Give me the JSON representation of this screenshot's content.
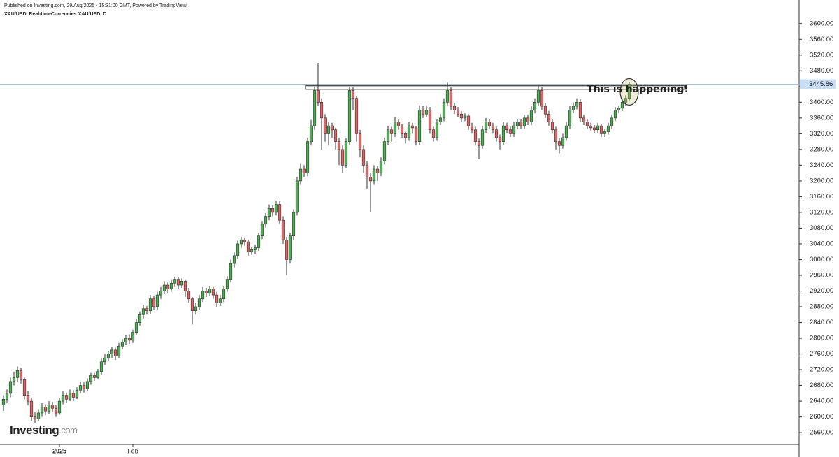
{
  "chart_data": {
    "type": "candlestick",
    "published": "Published on Investing.com, 29/Aug/2025 - 15:31:00 GMT, Powered by TradingView.",
    "title": "XAU/USD, Real-timeCurrencies:XAU/USD, D",
    "annotation": "This is happening!",
    "logo": {
      "name": "Investing",
      "suffix": ".com"
    },
    "up_color": "#4caf50",
    "down_color": "#e06666",
    "line_color": "#9ec3ea",
    "resistance_zone": [
      3433,
      3442
    ],
    "ylim": [
      2530,
      3660
    ],
    "yticks": [
      {
        "value": 2560,
        "label": "2560.00"
      },
      {
        "value": 2600,
        "label": "2600.00"
      },
      {
        "value": 2640,
        "label": "2640.00"
      },
      {
        "value": 2680,
        "label": "2680.00"
      },
      {
        "value": 2720,
        "label": "2720.00"
      },
      {
        "value": 2760,
        "label": "2760.00"
      },
      {
        "value": 2800,
        "label": "2800.00"
      },
      {
        "value": 2840,
        "label": "2840.00"
      },
      {
        "value": 2880,
        "label": "2880.00"
      },
      {
        "value": 2920,
        "label": "2920.00"
      },
      {
        "value": 2960,
        "label": "2960.00"
      },
      {
        "value": 3000,
        "label": "3000.00"
      },
      {
        "value": 3040,
        "label": "3040.00"
      },
      {
        "value": 3080,
        "label": "3080.00"
      },
      {
        "value": 3120,
        "label": "3120.00"
      },
      {
        "value": 3160,
        "label": "3160.00"
      },
      {
        "value": 3200,
        "label": "3200.00"
      },
      {
        "value": 3240,
        "label": "3240.00"
      },
      {
        "value": 3280,
        "label": "3280.00"
      },
      {
        "value": 3320,
        "label": "3320.00"
      },
      {
        "value": 3360,
        "label": "3360.00"
      },
      {
        "value": 3400,
        "label": "3400.00"
      },
      {
        "value": 3440,
        "label": "3440.00"
      },
      {
        "value": 3480,
        "label": "3480.00"
      },
      {
        "value": 3520,
        "label": "3520.00"
      },
      {
        "value": 3560,
        "label": "3560.00"
      },
      {
        "value": 3600,
        "label": "3600.00"
      }
    ],
    "grid": false,
    "categories": [
      null,
      null,
      null,
      null,
      null,
      null,
      null,
      null,
      null,
      null,
      null,
      null,
      null,
      null,
      null,
      null,
      "2025",
      null,
      null,
      null,
      null,
      null,
      null,
      null,
      null,
      null,
      null,
      null,
      null,
      null,
      null,
      null,
      null,
      null,
      null,
      null,
      null,
      "Feb",
      null,
      null,
      null,
      null,
      null,
      null,
      null,
      null,
      null,
      null,
      null,
      null,
      null,
      null,
      null,
      null,
      null,
      null,
      null,
      null,
      null,
      null,
      null,
      null,
      null,
      null,
      null,
      null,
      null,
      null,
      null,
      null,
      null,
      null,
      null,
      null,
      null,
      null,
      null,
      null,
      null,
      null,
      null,
      null,
      null,
      null,
      null,
      null,
      null,
      null,
      null,
      null,
      null,
      null,
      null,
      null,
      null,
      null,
      null,
      null,
      null,
      null,
      null,
      null,
      null,
      null,
      null,
      null,
      null,
      null,
      null,
      null,
      null,
      null,
      null,
      null,
      null,
      null,
      null,
      null,
      null,
      null,
      null,
      null,
      null,
      null,
      null,
      null,
      null,
      null,
      null,
      null,
      null,
      null,
      null,
      null,
      null,
      null,
      null,
      null,
      null,
      null,
      null,
      null,
      null,
      null,
      null,
      null,
      null,
      null,
      null,
      null,
      null,
      null,
      null,
      null,
      null,
      null,
      null,
      null,
      null,
      null,
      null,
      null,
      null,
      null,
      null,
      null,
      null,
      null,
      null,
      null,
      null,
      null,
      null,
      null,
      null,
      null,
      null,
      null,
      null,
      null
    ],
    "ohlc": [
      [
        2630,
        2655,
        2615,
        2645
      ],
      [
        2645,
        2670,
        2635,
        2660
      ],
      [
        2660,
        2700,
        2650,
        2690
      ],
      [
        2690,
        2715,
        2680,
        2700
      ],
      [
        2700,
        2728,
        2690,
        2718
      ],
      [
        2718,
        2725,
        2685,
        2695
      ],
      [
        2695,
        2700,
        2645,
        2655
      ],
      [
        2655,
        2665,
        2630,
        2640
      ],
      [
        2640,
        2648,
        2590,
        2600
      ],
      [
        2600,
        2612,
        2585,
        2595
      ],
      [
        2595,
        2618,
        2590,
        2610
      ],
      [
        2610,
        2635,
        2600,
        2625
      ],
      [
        2625,
        2632,
        2605,
        2615
      ],
      [
        2615,
        2640,
        2608,
        2630
      ],
      [
        2630,
        2638,
        2612,
        2622
      ],
      [
        2622,
        2630,
        2600,
        2610
      ],
      [
        2610,
        2648,
        2605,
        2640
      ],
      [
        2640,
        2665,
        2632,
        2655
      ],
      [
        2655,
        2662,
        2635,
        2645
      ],
      [
        2645,
        2670,
        2640,
        2660
      ],
      [
        2660,
        2668,
        2640,
        2650
      ],
      [
        2650,
        2675,
        2645,
        2668
      ],
      [
        2668,
        2690,
        2660,
        2680
      ],
      [
        2680,
        2688,
        2662,
        2672
      ],
      [
        2672,
        2698,
        2665,
        2690
      ],
      [
        2690,
        2712,
        2682,
        2705
      ],
      [
        2705,
        2712,
        2692,
        2700
      ],
      [
        2700,
        2722,
        2695,
        2715
      ],
      [
        2715,
        2748,
        2708,
        2740
      ],
      [
        2740,
        2760,
        2732,
        2750
      ],
      [
        2750,
        2768,
        2742,
        2760
      ],
      [
        2760,
        2778,
        2750,
        2770
      ],
      [
        2770,
        2776,
        2745,
        2755
      ],
      [
        2755,
        2788,
        2750,
        2780
      ],
      [
        2780,
        2798,
        2772,
        2790
      ],
      [
        2790,
        2808,
        2782,
        2800
      ],
      [
        2800,
        2810,
        2785,
        2795
      ],
      [
        2795,
        2822,
        2788,
        2815
      ],
      [
        2815,
        2848,
        2808,
        2840
      ],
      [
        2840,
        2868,
        2832,
        2860
      ],
      [
        2860,
        2885,
        2850,
        2875
      ],
      [
        2875,
        2882,
        2860,
        2870
      ],
      [
        2870,
        2910,
        2862,
        2900
      ],
      [
        2900,
        2908,
        2872,
        2880
      ],
      [
        2880,
        2918,
        2872,
        2910
      ],
      [
        2910,
        2930,
        2900,
        2920
      ],
      [
        2920,
        2945,
        2912,
        2935
      ],
      [
        2935,
        2942,
        2915,
        2925
      ],
      [
        2925,
        2950,
        2918,
        2940
      ],
      [
        2940,
        2956,
        2930,
        2950
      ],
      [
        2950,
        2955,
        2925,
        2935
      ],
      [
        2935,
        2952,
        2928,
        2945
      ],
      [
        2945,
        2950,
        2905,
        2920
      ],
      [
        2920,
        2928,
        2890,
        2900
      ],
      [
        2900,
        2905,
        2835,
        2870
      ],
      [
        2870,
        2890,
        2860,
        2880
      ],
      [
        2880,
        2910,
        2872,
        2900
      ],
      [
        2900,
        2930,
        2892,
        2920
      ],
      [
        2920,
        2928,
        2905,
        2915
      ],
      [
        2915,
        2932,
        2908,
        2925
      ],
      [
        2925,
        2930,
        2900,
        2910
      ],
      [
        2910,
        2918,
        2880,
        2890
      ],
      [
        2890,
        2910,
        2882,
        2900
      ],
      [
        2900,
        2932,
        2892,
        2925
      ],
      [
        2925,
        2958,
        2918,
        2950
      ],
      [
        2950,
        3000,
        2942,
        2990
      ],
      [
        2990,
        3018,
        2980,
        3010
      ],
      [
        3010,
        3048,
        3002,
        3040
      ],
      [
        3040,
        3058,
        3030,
        3050
      ],
      [
        3050,
        3055,
        3035,
        3045
      ],
      [
        3045,
        3050,
        3010,
        3020
      ],
      [
        3020,
        3032,
        3012,
        3025
      ],
      [
        3025,
        3038,
        3015,
        3030
      ],
      [
        3030,
        3068,
        3022,
        3060
      ],
      [
        3060,
        3098,
        3052,
        3090
      ],
      [
        3090,
        3118,
        3082,
        3110
      ],
      [
        3110,
        3140,
        3100,
        3130
      ],
      [
        3130,
        3138,
        3110,
        3120
      ],
      [
        3120,
        3150,
        3112,
        3140
      ],
      [
        3140,
        3148,
        3090,
        3100
      ],
      [
        3100,
        3110,
        3040,
        3050
      ],
      [
        3050,
        3058,
        2960,
        3000
      ],
      [
        3000,
        3068,
        2990,
        3060
      ],
      [
        3060,
        3128,
        3050,
        3120
      ],
      [
        3120,
        3210,
        3112,
        3200
      ],
      [
        3200,
        3245,
        3190,
        3230
      ],
      [
        3230,
        3240,
        3210,
        3220
      ],
      [
        3220,
        3310,
        3212,
        3300
      ],
      [
        3300,
        3355,
        3290,
        3340
      ],
      [
        3340,
        3440,
        3330,
        3430
      ],
      [
        3430,
        3500,
        3390,
        3400
      ],
      [
        3400,
        3410,
        3280,
        3360
      ],
      [
        3360,
        3370,
        3300,
        3320
      ],
      [
        3320,
        3350,
        3290,
        3340
      ],
      [
        3340,
        3348,
        3310,
        3330
      ],
      [
        3330,
        3335,
        3280,
        3300
      ],
      [
        3300,
        3310,
        3240,
        3280
      ],
      [
        3280,
        3290,
        3220,
        3240
      ],
      [
        3240,
        3310,
        3232,
        3300
      ],
      [
        3300,
        3440,
        3292,
        3430
      ],
      [
        3430,
        3438,
        3380,
        3410
      ],
      [
        3410,
        3415,
        3300,
        3320
      ],
      [
        3320,
        3330,
        3260,
        3280
      ],
      [
        3280,
        3290,
        3220,
        3240
      ],
      [
        3240,
        3250,
        3180,
        3210
      ],
      [
        3210,
        3220,
        3120,
        3200
      ],
      [
        3200,
        3240,
        3190,
        3230
      ],
      [
        3230,
        3238,
        3200,
        3220
      ],
      [
        3220,
        3260,
        3212,
        3250
      ],
      [
        3250,
        3310,
        3242,
        3300
      ],
      [
        3300,
        3340,
        3292,
        3330
      ],
      [
        3330,
        3338,
        3300,
        3320
      ],
      [
        3320,
        3362,
        3312,
        3350
      ],
      [
        3350,
        3358,
        3330,
        3340
      ],
      [
        3340,
        3345,
        3310,
        3320
      ],
      [
        3320,
        3325,
        3295,
        3310
      ],
      [
        3310,
        3350,
        3302,
        3340
      ],
      [
        3340,
        3348,
        3320,
        3335
      ],
      [
        3335,
        3340,
        3290,
        3300
      ],
      [
        3300,
        3392,
        3292,
        3380
      ],
      [
        3380,
        3390,
        3360,
        3370
      ],
      [
        3370,
        3392,
        3362,
        3380
      ],
      [
        3380,
        3388,
        3320,
        3330
      ],
      [
        3330,
        3338,
        3300,
        3310
      ],
      [
        3310,
        3358,
        3302,
        3350
      ],
      [
        3350,
        3370,
        3342,
        3360
      ],
      [
        3360,
        3410,
        3352,
        3400
      ],
      [
        3400,
        3450,
        3392,
        3430
      ],
      [
        3430,
        3438,
        3380,
        3390
      ],
      [
        3390,
        3398,
        3370,
        3380
      ],
      [
        3380,
        3388,
        3362,
        3370
      ],
      [
        3370,
        3378,
        3350,
        3360
      ],
      [
        3360,
        3372,
        3352,
        3365
      ],
      [
        3365,
        3370,
        3330,
        3340
      ],
      [
        3340,
        3348,
        3320,
        3330
      ],
      [
        3330,
        3338,
        3290,
        3300
      ],
      [
        3300,
        3308,
        3255,
        3290
      ],
      [
        3290,
        3340,
        3282,
        3330
      ],
      [
        3330,
        3360,
        3322,
        3350
      ],
      [
        3350,
        3358,
        3332,
        3340
      ],
      [
        3340,
        3348,
        3320,
        3330
      ],
      [
        3330,
        3338,
        3300,
        3310
      ],
      [
        3310,
        3318,
        3280,
        3300
      ],
      [
        3300,
        3350,
        3292,
        3340
      ],
      [
        3340,
        3348,
        3322,
        3330
      ],
      [
        3330,
        3338,
        3312,
        3320
      ],
      [
        3320,
        3350,
        3312,
        3340
      ],
      [
        3340,
        3358,
        3332,
        3350
      ],
      [
        3350,
        3358,
        3332,
        3340
      ],
      [
        3340,
        3368,
        3332,
        3360
      ],
      [
        3360,
        3368,
        3342,
        3350
      ],
      [
        3350,
        3390,
        3342,
        3380
      ],
      [
        3380,
        3410,
        3372,
        3400
      ],
      [
        3400,
        3442,
        3392,
        3430
      ],
      [
        3430,
        3438,
        3380,
        3390
      ],
      [
        3390,
        3398,
        3360,
        3370
      ],
      [
        3370,
        3378,
        3340,
        3350
      ],
      [
        3350,
        3358,
        3320,
        3330
      ],
      [
        3330,
        3338,
        3280,
        3300
      ],
      [
        3300,
        3308,
        3270,
        3290
      ],
      [
        3290,
        3320,
        3282,
        3310
      ],
      [
        3310,
        3350,
        3302,
        3340
      ],
      [
        3340,
        3390,
        3332,
        3380
      ],
      [
        3380,
        3400,
        3372,
        3390
      ],
      [
        3390,
        3410,
        3382,
        3400
      ],
      [
        3400,
        3408,
        3350,
        3360
      ],
      [
        3360,
        3368,
        3342,
        3350
      ],
      [
        3350,
        3358,
        3332,
        3340
      ],
      [
        3340,
        3348,
        3328,
        3335
      ],
      [
        3335,
        3342,
        3322,
        3330
      ],
      [
        3330,
        3348,
        3322,
        3340
      ],
      [
        3340,
        3345,
        3312,
        3320
      ],
      [
        3320,
        3332,
        3312,
        3325
      ],
      [
        3325,
        3348,
        3318,
        3340
      ],
      [
        3340,
        3368,
        3332,
        3360
      ],
      [
        3360,
        3388,
        3352,
        3380
      ],
      [
        3380,
        3392,
        3372,
        3385
      ],
      [
        3385,
        3408,
        3378,
        3400
      ],
      [
        3400,
        3418,
        3392,
        3410
      ],
      [
        3410,
        3451,
        3402,
        3445.86
      ]
    ]
  }
}
